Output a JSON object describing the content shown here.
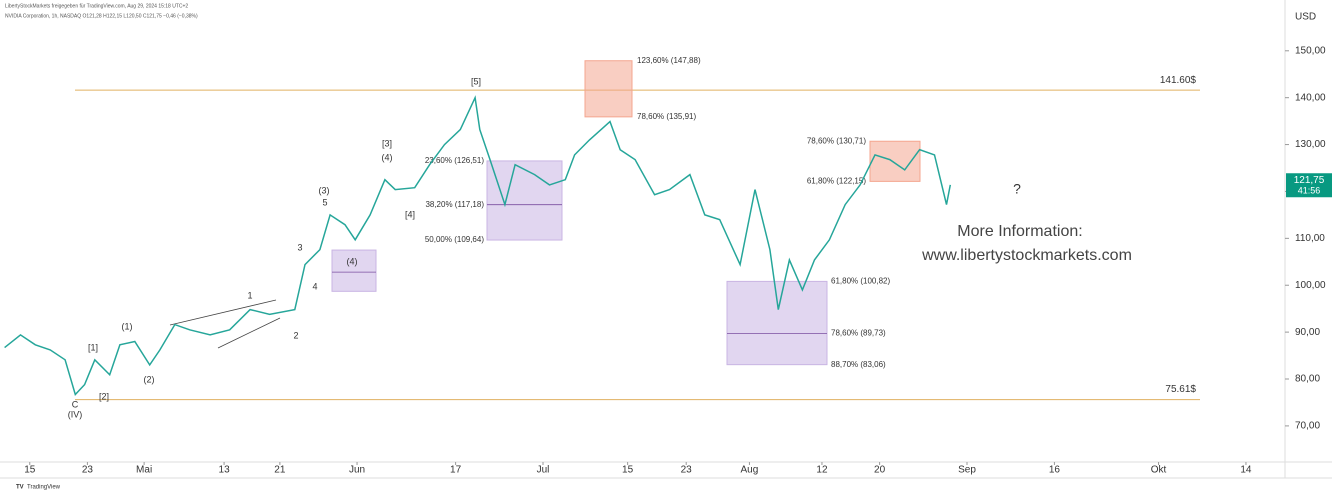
{
  "header": {
    "shared_by": "LibertyStockMarkets freigegeben für TradingView.com, Aug 29, 2024 15:18 UTC+2",
    "symbol": "NVIDIA Corporation, 1h, NASDAQ  O121,28  H122,15  L120,50  C121,75  −0,46 (−0,38%)",
    "currency": "USD"
  },
  "chart_data": {
    "type": "line",
    "series": [
      {
        "name": "NVIDIA Corporation",
        "color": "#26a69a",
        "x": [
          0.5,
          2.2,
          3.8,
          5.4,
          7.0,
          8.1,
          9.1,
          10.2,
          11.8,
          12.9,
          14.5,
          16.1,
          17.2,
          18.8,
          20.4,
          22.6,
          24.7,
          26.9,
          29.0,
          31.7,
          32.8,
          34.4,
          35.5,
          37.1,
          38.2,
          39.8,
          41.4,
          42.5,
          44.6,
          46.2,
          47.8,
          49.5,
          51.1,
          51.6,
          52.7,
          54.3,
          55.4,
          57.5,
          59.1,
          60.8,
          61.8,
          63.4,
          65.6,
          66.7,
          68.3,
          70.4,
          72.0,
          74.2,
          75.8,
          77.4,
          79.6,
          81.2,
          82.8,
          83.7,
          84.9,
          86.3,
          87.6,
          89.2,
          90.9,
          92.5,
          94.1,
          95.7,
          97.3,
          98.9,
          100.5,
          101.8,
          102.2
        ],
        "values": [
          86.7,
          89.4,
          87.3,
          86.2,
          84.1,
          76.7,
          78.8,
          84.1,
          80.9,
          87.3,
          88.0,
          83.0,
          86.2,
          91.6,
          90.5,
          89.4,
          90.5,
          94.8,
          93.8,
          94.8,
          104.4,
          107.6,
          115.0,
          112.9,
          109.7,
          115.0,
          122.5,
          120.4,
          120.8,
          125.7,
          130.0,
          133.2,
          140.0,
          133.2,
          126.8,
          117.2,
          125.7,
          123.6,
          121.4,
          122.5,
          127.8,
          131.0,
          134.9,
          128.9,
          126.8,
          119.3,
          120.4,
          123.6,
          115.0,
          114.0,
          104.4,
          120.4,
          107.6,
          94.8,
          105.4,
          99.0,
          105.4,
          109.7,
          117.2,
          121.4,
          127.8,
          126.8,
          124.6,
          128.9,
          127.8,
          117.2,
          121.4
        ]
      }
    ],
    "xlim": [
      0,
      138.2
    ],
    "ylim": [
      62.3,
      158.7
    ],
    "xticks": [
      {
        "value": 3.2,
        "label": "15"
      },
      {
        "value": 9.4,
        "label": "23"
      },
      {
        "value": 15.5,
        "label": "Mai"
      },
      {
        "value": 24.1,
        "label": "13"
      },
      {
        "value": 30.1,
        "label": "21"
      },
      {
        "value": 38.4,
        "label": "Jun"
      },
      {
        "value": 49.0,
        "label": "17"
      },
      {
        "value": 58.4,
        "label": "Jul"
      },
      {
        "value": 67.5,
        "label": "15"
      },
      {
        "value": 73.8,
        "label": "23"
      },
      {
        "value": 80.6,
        "label": "Aug"
      },
      {
        "value": 88.4,
        "label": "12"
      },
      {
        "value": 94.6,
        "label": "20"
      },
      {
        "value": 104.0,
        "label": "Sep"
      },
      {
        "value": 113.4,
        "label": "16"
      },
      {
        "value": 124.6,
        "label": "Okt"
      },
      {
        "value": 134.0,
        "label": "14"
      }
    ],
    "yticks": [
      {
        "value": 70,
        "label": "70,00"
      },
      {
        "value": 80,
        "label": "80,00"
      },
      {
        "value": 90,
        "label": "90,00"
      },
      {
        "value": 100,
        "label": "100,00"
      },
      {
        "value": 110,
        "label": "110,00"
      },
      {
        "value": 120,
        "label": "120,00"
      },
      {
        "value": 130,
        "label": "130,00"
      },
      {
        "value": 140,
        "label": "140,00"
      },
      {
        "value": 150,
        "label": "150,00"
      }
    ],
    "last_price": {
      "value": 121.75,
      "label": "121,75"
    },
    "countdown": "41:56",
    "levels": [
      {
        "value": 141.6,
        "label": "141.60$",
        "color": "#e0b060"
      },
      {
        "value": 75.61,
        "label": "75.61$",
        "color": "#e0b060"
      }
    ],
    "zones": [
      {
        "color": "#f4a58f",
        "text_color": "#e4572e",
        "levels": [
          {
            "value": 147.88,
            "label": "123,60% (147,88)"
          },
          {
            "value": 135.91,
            "label": "78,60% (135,91)"
          }
        ]
      },
      {
        "color": "#c9b4e3",
        "text_color": "#7b4fa0",
        "levels": [
          {
            "value": 126.51,
            "label": "23,60% (126,51)"
          },
          {
            "value": 117.18,
            "label": "38,20% (117,18)"
          },
          {
            "value": 109.64,
            "label": "50,00% (109,64)"
          }
        ]
      },
      {
        "color": "#c9b4e3",
        "text_color": "#7b4fa0",
        "levels": [
          {
            "value": 100.82,
            "label": "61,80% (100,82)"
          },
          {
            "value": 89.73,
            "label": "78,60% (89,73)"
          },
          {
            "value": 83.06,
            "label": "88,70% (83,06)"
          }
        ]
      },
      {
        "color": "#f4a58f",
        "text_color": "#e4572e",
        "levels": [
          {
            "value": 130.71,
            "label": "78,60% (130,71)"
          },
          {
            "value": 122.15,
            "label": "61,80% (122,15)"
          }
        ]
      },
      {
        "color": "#c9b4e3",
        "text_color": "#7b4fa0",
        "levels": [
          107.5,
          102.8,
          98.7
        ]
      }
    ],
    "wave_labels": [
      "C",
      "(IV)",
      "[1]",
      "[2]",
      "(1)",
      "(2)",
      "1",
      "2",
      "3",
      "4",
      "(3)",
      "5",
      "(4)",
      "[3]",
      "(4)",
      "[4]",
      "[5]",
      "?"
    ],
    "annotations": [
      "More Information:",
      "www.libertystockmarkets.com"
    ]
  },
  "footer": "TradingView"
}
